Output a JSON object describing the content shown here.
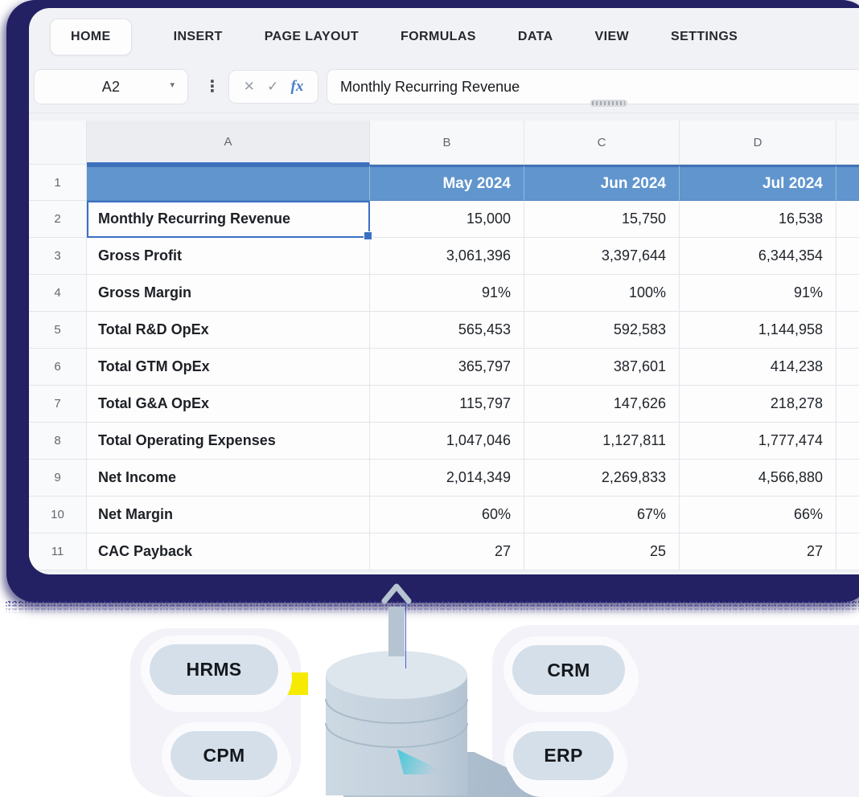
{
  "menu": {
    "tabs": [
      {
        "label": "HOME",
        "active": true
      },
      {
        "label": "INSERT"
      },
      {
        "label": "PAGE LAYOUT"
      },
      {
        "label": "FORMULAS"
      },
      {
        "label": "DATA"
      },
      {
        "label": "VIEW"
      },
      {
        "label": "SETTINGS"
      }
    ]
  },
  "formula_bar": {
    "cell_ref": "A2",
    "content": "Monthly Recurring Revenue",
    "icons": {
      "dropdown": "▾",
      "kebab": "⋮",
      "cancel": "✕",
      "confirm": "✓",
      "function": "fx"
    }
  },
  "sheet": {
    "selected_cell": "A2",
    "column_letters": [
      "A",
      "B",
      "C",
      "D"
    ],
    "header_row": {
      "row": "1",
      "labels": [
        "",
        "May 2024",
        "Jun 2024",
        "Jul 2024"
      ]
    },
    "rows": [
      {
        "num": "2",
        "label": "Monthly Recurring Revenue",
        "values": [
          "15,000",
          "15,750",
          "16,538"
        ],
        "selected": true
      },
      {
        "num": "3",
        "label": "Gross Profit",
        "values": [
          "3,061,396",
          "3,397,644",
          "6,344,354"
        ]
      },
      {
        "num": "4",
        "label": "Gross Margin",
        "values": [
          "91%",
          "100%",
          "91%"
        ]
      },
      {
        "num": "5",
        "label": "Total R&D OpEx",
        "values": [
          "565,453",
          "592,583",
          "1,144,958"
        ]
      },
      {
        "num": "6",
        "label": "Total GTM OpEx",
        "values": [
          "365,797",
          "387,601",
          "414,238"
        ]
      },
      {
        "num": "7",
        "label": "Total G&A OpEx",
        "values": [
          "115,797",
          "147,626",
          "218,278"
        ]
      },
      {
        "num": "8",
        "label": "Total Operating Expenses",
        "values": [
          "1,047,046",
          "1,127,811",
          "1,777,474"
        ]
      },
      {
        "num": "9",
        "label": "Net Income",
        "values": [
          "2,014,349",
          "2,269,833",
          "4,566,880"
        ]
      },
      {
        "num": "10",
        "label": "Net Margin",
        "values": [
          "60%",
          "67%",
          "66%"
        ]
      },
      {
        "num": "11",
        "label": "CAC Payback",
        "values": [
          "27",
          "25",
          "27"
        ]
      }
    ]
  },
  "illustration": {
    "pills": [
      {
        "label": "HRMS"
      },
      {
        "label": "CRM"
      },
      {
        "label": "CPM"
      },
      {
        "label": "ERP"
      }
    ],
    "database_icon": "database-cylinder",
    "arrow_icon": "arrow-up"
  },
  "colors": {
    "sticker_navy": "#232063",
    "panel_bg": "#f1f2f6",
    "header_row_blue": "#6095ce",
    "selection_blue": "#3a70c3",
    "pill_fill": "#d4dfe9",
    "cylinder_body": "#c3d0dc",
    "accent_yellow": "#f6eb00",
    "accent_teal": "#34c6d8"
  }
}
